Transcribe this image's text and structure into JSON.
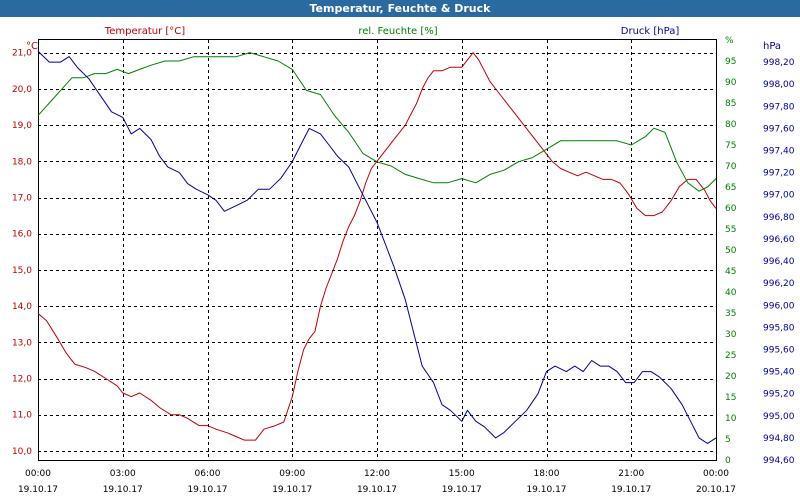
{
  "window": {
    "title": "Temperatur, Feuchte & Druck"
  },
  "chart_data": {
    "type": "line",
    "title": "Temperatur, Feuchte & Druck",
    "grid": true,
    "x": {
      "min_hours": 0,
      "max_hours": 24,
      "tick_hours": [
        0,
        3,
        6,
        9,
        12,
        15,
        18,
        21,
        24
      ],
      "tick_time_labels": [
        "00:00",
        "03:00",
        "06:00",
        "09:00",
        "12:00",
        "15:00",
        "18:00",
        "21:00",
        "00:00"
      ],
      "tick_date_labels": [
        "19.10.17",
        "19.10.17",
        "19.10.17",
        "19.10.17",
        "19.10.17",
        "19.10.17",
        "19.10.17",
        "19.10.17",
        "20.10.17"
      ]
    },
    "axes": {
      "temperature": {
        "label": "Temperatur [°C]",
        "unit": "°C",
        "min": 9.75,
        "max": 21.35,
        "color": "#c00000",
        "ticks": [
          10,
          11,
          12,
          13,
          14,
          15,
          16,
          17,
          18,
          19,
          20,
          21
        ],
        "tick_labels": [
          "10,0",
          "11,0",
          "12,0",
          "13,0",
          "14,0",
          "15,0",
          "16,0",
          "17,0",
          "18,0",
          "19,0",
          "20,0",
          "21,0"
        ]
      },
      "humidity": {
        "label": "rel. Feuchte [%]",
        "unit": "%",
        "min": 0,
        "max": 100,
        "color": "#008000",
        "ticks": [
          0,
          5,
          10,
          15,
          20,
          25,
          30,
          35,
          40,
          45,
          50,
          55,
          60,
          65,
          70,
          75,
          80,
          85,
          90,
          95,
          100
        ],
        "tick_labels": [
          "0",
          "5",
          "10",
          "15",
          "20",
          "25",
          "30",
          "35",
          "40",
          "45",
          "50",
          "55",
          "60",
          "65",
          "70",
          "75",
          "80",
          "85",
          "90",
          "95",
          "%"
        ]
      },
      "pressure": {
        "label": "Druck [hPa]",
        "unit": "hPa",
        "min": 994.6,
        "max": 998.4,
        "color": "#0000a0",
        "ticks": [
          994.6,
          994.8,
          995.0,
          995.2,
          995.4,
          995.6,
          995.8,
          996.0,
          996.2,
          996.4,
          996.6,
          996.8,
          997.0,
          997.2,
          997.4,
          997.6,
          997.8,
          998.0,
          998.2
        ],
        "tick_labels": [
          "994,60",
          "994,80",
          "995,00",
          "995,20",
          "995,40",
          "995,60",
          "995,80",
          "996,00",
          "996,20",
          "996,40",
          "996,60",
          "996,80",
          "997,00",
          "997,20",
          "997,40",
          "997,60",
          "997,80",
          "998,00",
          "998,20"
        ]
      }
    },
    "series": [
      {
        "name": "Temperatur [°C]",
        "axis": "temperature",
        "color": "#c00000",
        "points": [
          [
            0,
            13.8
          ],
          [
            0.3,
            13.6
          ],
          [
            0.7,
            13.1
          ],
          [
            1.0,
            12.7
          ],
          [
            1.3,
            12.4
          ],
          [
            1.7,
            12.3
          ],
          [
            2.0,
            12.2
          ],
          [
            2.4,
            12.0
          ],
          [
            2.8,
            11.8
          ],
          [
            3.0,
            11.6
          ],
          [
            3.3,
            11.5
          ],
          [
            3.6,
            11.6
          ],
          [
            4.0,
            11.4
          ],
          [
            4.3,
            11.2
          ],
          [
            4.7,
            11.0
          ],
          [
            5.0,
            11.0
          ],
          [
            5.3,
            10.9
          ],
          [
            5.7,
            10.7
          ],
          [
            6.0,
            10.7
          ],
          [
            6.3,
            10.6
          ],
          [
            6.7,
            10.5
          ],
          [
            7.0,
            10.4
          ],
          [
            7.3,
            10.3
          ],
          [
            7.7,
            10.3
          ],
          [
            8.0,
            10.6
          ],
          [
            8.4,
            10.7
          ],
          [
            8.7,
            10.8
          ],
          [
            9.0,
            11.5
          ],
          [
            9.2,
            12.2
          ],
          [
            9.4,
            12.8
          ],
          [
            9.6,
            13.1
          ],
          [
            9.8,
            13.3
          ],
          [
            10.0,
            14.0
          ],
          [
            10.2,
            14.5
          ],
          [
            10.4,
            14.9
          ],
          [
            10.6,
            15.3
          ],
          [
            10.8,
            15.8
          ],
          [
            11.0,
            16.2
          ],
          [
            11.2,
            16.5
          ],
          [
            11.4,
            16.9
          ],
          [
            11.6,
            17.4
          ],
          [
            11.8,
            17.8
          ],
          [
            12.0,
            18.0
          ],
          [
            12.2,
            18.2
          ],
          [
            12.4,
            18.4
          ],
          [
            12.6,
            18.6
          ],
          [
            12.8,
            18.8
          ],
          [
            13.0,
            19.0
          ],
          [
            13.2,
            19.3
          ],
          [
            13.4,
            19.6
          ],
          [
            13.6,
            20.0
          ],
          [
            13.8,
            20.3
          ],
          [
            14.0,
            20.5
          ],
          [
            14.3,
            20.5
          ],
          [
            14.6,
            20.6
          ],
          [
            15.0,
            20.6
          ],
          [
            15.2,
            20.8
          ],
          [
            15.4,
            21.0
          ],
          [
            15.6,
            20.8
          ],
          [
            15.8,
            20.5
          ],
          [
            16.0,
            20.2
          ],
          [
            16.3,
            19.9
          ],
          [
            16.6,
            19.6
          ],
          [
            17.0,
            19.2
          ],
          [
            17.3,
            18.9
          ],
          [
            17.6,
            18.6
          ],
          [
            17.9,
            18.3
          ],
          [
            18.2,
            18.0
          ],
          [
            18.5,
            17.8
          ],
          [
            18.8,
            17.7
          ],
          [
            19.1,
            17.6
          ],
          [
            19.4,
            17.7
          ],
          [
            19.7,
            17.6
          ],
          [
            20.0,
            17.5
          ],
          [
            20.3,
            17.5
          ],
          [
            20.6,
            17.4
          ],
          [
            20.9,
            17.1
          ],
          [
            21.2,
            16.7
          ],
          [
            21.5,
            16.5
          ],
          [
            21.8,
            16.5
          ],
          [
            22.1,
            16.6
          ],
          [
            22.4,
            16.9
          ],
          [
            22.7,
            17.3
          ],
          [
            23.0,
            17.5
          ],
          [
            23.3,
            17.5
          ],
          [
            23.6,
            17.2
          ],
          [
            23.8,
            16.9
          ],
          [
            24.0,
            16.7
          ]
        ]
      },
      {
        "name": "rel. Feuchte [%]",
        "axis": "humidity",
        "color": "#008000",
        "points": [
          [
            0,
            82
          ],
          [
            0.4,
            85
          ],
          [
            0.8,
            88
          ],
          [
            1.2,
            91
          ],
          [
            1.6,
            91
          ],
          [
            2.0,
            92
          ],
          [
            2.4,
            92
          ],
          [
            2.8,
            93
          ],
          [
            3.2,
            92
          ],
          [
            3.6,
            93
          ],
          [
            4.0,
            94
          ],
          [
            4.5,
            95
          ],
          [
            5.0,
            95
          ],
          [
            5.5,
            96
          ],
          [
            6.0,
            96
          ],
          [
            6.5,
            96
          ],
          [
            7.0,
            96
          ],
          [
            7.5,
            97
          ],
          [
            8.0,
            96
          ],
          [
            8.5,
            95
          ],
          [
            9.0,
            93
          ],
          [
            9.5,
            88
          ],
          [
            10.0,
            87
          ],
          [
            10.5,
            82
          ],
          [
            11.0,
            78
          ],
          [
            11.5,
            73
          ],
          [
            12.0,
            71
          ],
          [
            12.5,
            70
          ],
          [
            13.0,
            68
          ],
          [
            13.5,
            67
          ],
          [
            14.0,
            66
          ],
          [
            14.5,
            66
          ],
          [
            15.0,
            67
          ],
          [
            15.5,
            66
          ],
          [
            16.0,
            68
          ],
          [
            16.5,
            69
          ],
          [
            17.0,
            71
          ],
          [
            17.5,
            72
          ],
          [
            18.0,
            74
          ],
          [
            18.5,
            76
          ],
          [
            19.0,
            76
          ],
          [
            19.5,
            76
          ],
          [
            20.0,
            76
          ],
          [
            20.5,
            76
          ],
          [
            21.0,
            75
          ],
          [
            21.5,
            77
          ],
          [
            21.8,
            79
          ],
          [
            22.2,
            78
          ],
          [
            22.6,
            71
          ],
          [
            23.0,
            66
          ],
          [
            23.4,
            64
          ],
          [
            23.7,
            65
          ],
          [
            24.0,
            67
          ]
        ]
      },
      {
        "name": "Druck [hPa]",
        "axis": "pressure",
        "color": "#0000a0",
        "points": [
          [
            0,
            998.3
          ],
          [
            0.4,
            998.2
          ],
          [
            0.8,
            998.2
          ],
          [
            1.1,
            998.25
          ],
          [
            1.4,
            998.15
          ],
          [
            1.8,
            998.05
          ],
          [
            2.2,
            997.9
          ],
          [
            2.6,
            997.75
          ],
          [
            3.0,
            997.7
          ],
          [
            3.3,
            997.55
          ],
          [
            3.6,
            997.6
          ],
          [
            4.0,
            997.5
          ],
          [
            4.3,
            997.35
          ],
          [
            4.6,
            997.25
          ],
          [
            5.0,
            997.2
          ],
          [
            5.3,
            997.1
          ],
          [
            5.6,
            997.05
          ],
          [
            6.0,
            997.0
          ],
          [
            6.3,
            996.95
          ],
          [
            6.6,
            996.85
          ],
          [
            7.0,
            996.9
          ],
          [
            7.4,
            996.95
          ],
          [
            7.8,
            997.05
          ],
          [
            8.2,
            997.05
          ],
          [
            8.6,
            997.15
          ],
          [
            9.0,
            997.3
          ],
          [
            9.3,
            997.45
          ],
          [
            9.6,
            997.6
          ],
          [
            10.0,
            997.55
          ],
          [
            10.3,
            997.45
          ],
          [
            10.6,
            997.35
          ],
          [
            11.0,
            997.25
          ],
          [
            11.3,
            997.1
          ],
          [
            11.6,
            996.95
          ],
          [
            12.0,
            996.75
          ],
          [
            12.3,
            996.55
          ],
          [
            12.6,
            996.35
          ],
          [
            13.0,
            996.05
          ],
          [
            13.3,
            995.75
          ],
          [
            13.6,
            995.45
          ],
          [
            14.0,
            995.3
          ],
          [
            14.3,
            995.1
          ],
          [
            14.6,
            995.05
          ],
          [
            15.0,
            994.95
          ],
          [
            15.2,
            995.05
          ],
          [
            15.5,
            994.95
          ],
          [
            15.8,
            994.9
          ],
          [
            16.2,
            994.8
          ],
          [
            16.5,
            994.85
          ],
          [
            16.9,
            994.95
          ],
          [
            17.3,
            995.05
          ],
          [
            17.7,
            995.2
          ],
          [
            18.0,
            995.4
          ],
          [
            18.3,
            995.45
          ],
          [
            18.7,
            995.4
          ],
          [
            19.0,
            995.45
          ],
          [
            19.3,
            995.4
          ],
          [
            19.6,
            995.5
          ],
          [
            19.9,
            995.45
          ],
          [
            20.2,
            995.45
          ],
          [
            20.5,
            995.4
          ],
          [
            20.8,
            995.3
          ],
          [
            21.1,
            995.3
          ],
          [
            21.4,
            995.4
          ],
          [
            21.7,
            995.4
          ],
          [
            22.0,
            995.35
          ],
          [
            22.4,
            995.25
          ],
          [
            22.8,
            995.1
          ],
          [
            23.1,
            994.95
          ],
          [
            23.4,
            994.8
          ],
          [
            23.7,
            994.75
          ],
          [
            24.0,
            994.8
          ]
        ]
      }
    ]
  }
}
